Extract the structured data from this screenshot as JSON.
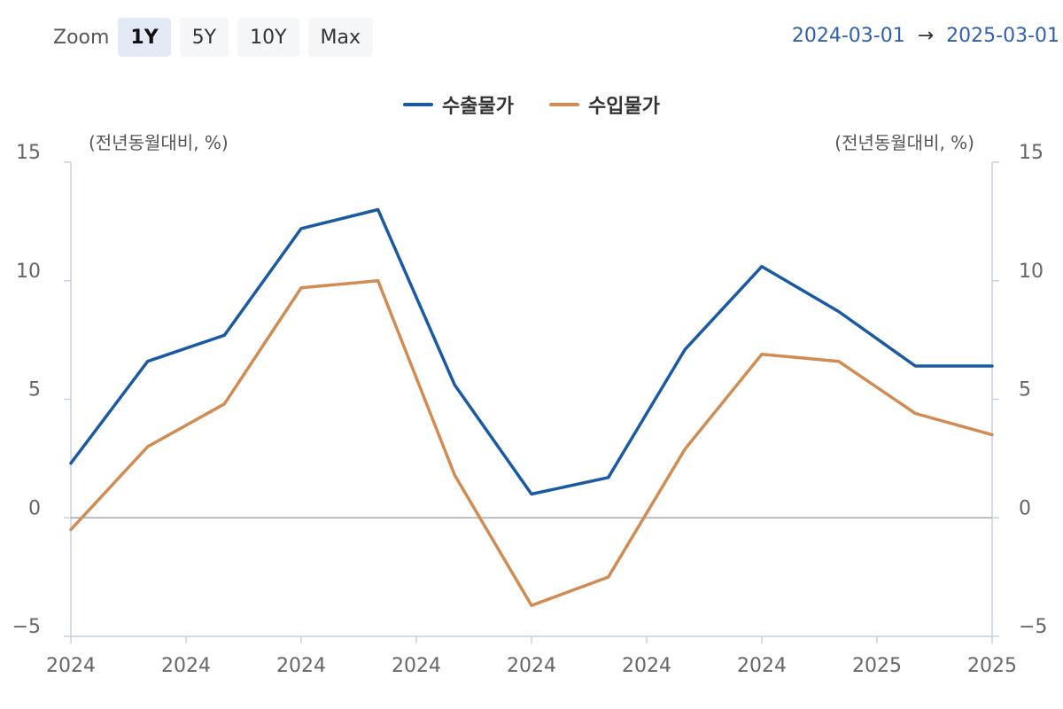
{
  "toolbar": {
    "zoom_label": "Zoom",
    "buttons": [
      "1Y",
      "5Y",
      "10Y",
      "Max"
    ],
    "active_button": "1Y"
  },
  "date_range": {
    "start": "2024-03-01",
    "arrow": "→",
    "end": "2025-03-01"
  },
  "colors": {
    "export": "#1a5aa3",
    "import": "#d08c52",
    "axis": "#c5cfe6",
    "zero_line": "#aaaaaa"
  },
  "chart_data": {
    "type": "line",
    "left_axis_unit": "(전년동월대비, %)",
    "right_axis_unit": "(전년동월대비, %)",
    "ylim": [
      -5,
      15
    ],
    "yticks": [
      15,
      10,
      5,
      0,
      -5
    ],
    "x_tick_labels": [
      "2024",
      "2024",
      "2024",
      "2024",
      "2024",
      "2024",
      "2024",
      "2025",
      "2025"
    ],
    "legend_position": "top-center",
    "grid": false,
    "series": [
      {
        "name": "수출물가",
        "color_key": "export",
        "values": [
          2.3,
          6.6,
          7.7,
          12.2,
          13.0,
          5.6,
          1.0,
          1.7,
          7.1,
          10.6,
          8.7,
          6.4,
          6.4
        ]
      },
      {
        "name": "수입물가",
        "color_key": "import",
        "values": [
          -0.5,
          3.0,
          4.8,
          9.7,
          10.0,
          1.8,
          -3.7,
          -2.5,
          2.9,
          6.9,
          6.6,
          4.4,
          3.5
        ]
      }
    ]
  }
}
